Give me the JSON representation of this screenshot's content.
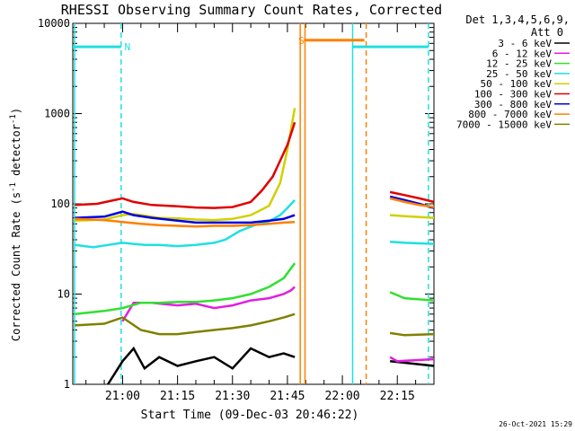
{
  "chart_data": {
    "type": "line",
    "title": "RHESSI Observing Summary Count Rates, Corrected",
    "xlabel": "Start Time (09-Dec-03 20:46:22)",
    "ylabel": "Corrected Count Rate (s",
    "ylabel_sup": "-1",
    "ylabel_mid": " detector",
    "ylabel_end": ")",
    "ylog": true,
    "ylim": [
      1,
      10000
    ],
    "xlim_min": [
      46.4,
      145
    ],
    "y_ticks": [
      {
        "v": 1,
        "label": "1"
      },
      {
        "v": 10,
        "label": "10"
      },
      {
        "v": 100,
        "label": "100"
      },
      {
        "v": 1000,
        "label": "1000"
      },
      {
        "v": 10000,
        "label": "10000"
      }
    ],
    "x_ticks": [
      {
        "v": 60,
        "label": "21:00"
      },
      {
        "v": 75,
        "label": "21:15"
      },
      {
        "v": 90,
        "label": "21:30"
      },
      {
        "v": 105,
        "label": "21:45"
      },
      {
        "v": 120,
        "label": "22:00"
      },
      {
        "v": 135,
        "label": "22:15"
      }
    ],
    "legend_header": [
      "Det 1,3,4,5,6,9,",
      "Att 0"
    ],
    "footer_date": "26-Oct-2021 15:29",
    "colors": {
      "3-6": "#000000",
      "6-12": "#e020e0",
      "12-25": "#30e030",
      "25-50": "#20e0e0",
      "50-100": "#d0d000",
      "100-300": "#e00000",
      "300-800": "#0000e0",
      "800-7000": "#ff8000",
      "7000-15000": "#808000",
      "flag_cyan": "#20e0e0",
      "flag_orange": "#ff8000"
    },
    "series": [
      {
        "name": "3 - 6 keV",
        "key": "3-6",
        "seg1": [
          [
            56,
            1
          ],
          [
            60,
            1.8
          ],
          [
            63,
            2.5
          ],
          [
            66,
            1.5
          ],
          [
            70,
            2
          ],
          [
            75,
            1.6
          ],
          [
            80,
            1.8
          ],
          [
            85,
            2
          ],
          [
            90,
            1.5
          ],
          [
            95,
            2.5
          ],
          [
            100,
            2
          ],
          [
            104,
            2.2
          ],
          [
            107,
            2
          ]
        ],
        "seg2": [
          [
            133,
            1.8
          ],
          [
            145,
            1.6
          ]
        ]
      },
      {
        "name": "6 - 12 keV",
        "key": "6-12",
        "seg1": [
          [
            60,
            5
          ],
          [
            63,
            8
          ],
          [
            68,
            8
          ],
          [
            75,
            7.5
          ],
          [
            80,
            7.8
          ],
          [
            85,
            7
          ],
          [
            90,
            7.5
          ],
          [
            95,
            8.5
          ],
          [
            100,
            9
          ],
          [
            104,
            10
          ],
          [
            106,
            11
          ],
          [
            107,
            12
          ]
        ],
        "seg2": [
          [
            133,
            2
          ],
          [
            135,
            1.8
          ],
          [
            145,
            1.9
          ]
        ]
      },
      {
        "name": "12 - 25 keV",
        "key": "12-25",
        "seg1": [
          [
            47,
            6
          ],
          [
            55,
            6.5
          ],
          [
            60,
            7
          ],
          [
            65,
            8
          ],
          [
            70,
            8
          ],
          [
            75,
            8.2
          ],
          [
            80,
            8.2
          ],
          [
            85,
            8.5
          ],
          [
            90,
            9
          ],
          [
            95,
            10
          ],
          [
            100,
            12
          ],
          [
            104,
            15
          ],
          [
            107,
            22
          ]
        ],
        "seg2": [
          [
            133,
            10.5
          ],
          [
            137,
            9
          ],
          [
            145,
            8.5
          ]
        ]
      },
      {
        "name": "25 - 50 keV",
        "key": "25-50",
        "seg1": [
          [
            47,
            35
          ],
          [
            52,
            33
          ],
          [
            56,
            35
          ],
          [
            60,
            37
          ],
          [
            63,
            36
          ],
          [
            66,
            35
          ],
          [
            70,
            35
          ],
          [
            75,
            34
          ],
          [
            80,
            35
          ],
          [
            85,
            37
          ],
          [
            88,
            40
          ],
          [
            92,
            50
          ],
          [
            96,
            58
          ],
          [
            100,
            64
          ],
          [
            103,
            75
          ],
          [
            105,
            90
          ],
          [
            107,
            110
          ]
        ],
        "seg2": [
          [
            133,
            38
          ],
          [
            137,
            37
          ],
          [
            145,
            36
          ]
        ]
      },
      {
        "name": "50 - 100 keV",
        "key": "50-100",
        "seg1": [
          [
            47,
            65
          ],
          [
            55,
            67
          ],
          [
            60,
            75
          ],
          [
            63,
            77
          ],
          [
            66,
            74
          ],
          [
            70,
            70
          ],
          [
            75,
            69
          ],
          [
            80,
            67
          ],
          [
            85,
            66
          ],
          [
            90,
            68
          ],
          [
            95,
            75
          ],
          [
            100,
            95
          ],
          [
            103,
            170
          ],
          [
            105,
            400
          ],
          [
            107,
            1150
          ]
        ],
        "seg2": [
          [
            133,
            75
          ],
          [
            137,
            73
          ],
          [
            145,
            70
          ]
        ]
      },
      {
        "name": "100 - 300 keV",
        "key": "100-300",
        "seg1": [
          [
            47,
            97
          ],
          [
            53,
            100
          ],
          [
            60,
            115
          ],
          [
            63,
            105
          ],
          [
            68,
            97
          ],
          [
            75,
            94
          ],
          [
            80,
            91
          ],
          [
            85,
            90
          ],
          [
            90,
            92
          ],
          [
            95,
            105
          ],
          [
            98,
            140
          ],
          [
            101,
            200
          ],
          [
            103,
            300
          ],
          [
            105,
            450
          ],
          [
            107,
            800
          ]
        ],
        "seg2": [
          [
            133,
            135
          ],
          [
            137,
            125
          ],
          [
            141,
            115
          ],
          [
            145,
            105
          ]
        ]
      },
      {
        "name": "300 - 800 keV",
        "key": "300-800",
        "seg1": [
          [
            47,
            70
          ],
          [
            55,
            72
          ],
          [
            60,
            82
          ],
          [
            63,
            75
          ],
          [
            68,
            70
          ],
          [
            75,
            65
          ],
          [
            80,
            62
          ],
          [
            85,
            62
          ],
          [
            90,
            62
          ],
          [
            95,
            62
          ],
          [
            100,
            65
          ],
          [
            104,
            68
          ],
          [
            107,
            75
          ]
        ],
        "seg2": [
          [
            133,
            120
          ],
          [
            137,
            110
          ],
          [
            141,
            100
          ],
          [
            145,
            90
          ]
        ]
      },
      {
        "name": "800 - 7000 keV",
        "key": "800-7000",
        "seg1": [
          [
            47,
            68
          ],
          [
            55,
            66
          ],
          [
            60,
            63
          ],
          [
            65,
            60
          ],
          [
            70,
            58
          ],
          [
            75,
            57
          ],
          [
            80,
            56
          ],
          [
            85,
            57
          ],
          [
            90,
            57
          ],
          [
            95,
            58
          ],
          [
            100,
            60
          ],
          [
            104,
            62
          ],
          [
            107,
            63
          ]
        ],
        "seg2": [
          [
            133,
            115
          ],
          [
            137,
            105
          ],
          [
            141,
            97
          ],
          [
            145,
            92
          ]
        ]
      },
      {
        "name": "7000 - 15000 keV",
        "key": "7000-15000",
        "seg1": [
          [
            47,
            4.5
          ],
          [
            55,
            4.7
          ],
          [
            60,
            5.5
          ],
          [
            65,
            4
          ],
          [
            70,
            3.6
          ],
          [
            75,
            3.6
          ],
          [
            80,
            3.8
          ],
          [
            85,
            4
          ],
          [
            90,
            4.2
          ],
          [
            95,
            4.5
          ],
          [
            100,
            5
          ],
          [
            104,
            5.5
          ],
          [
            107,
            6
          ]
        ],
        "seg2": [
          [
            133,
            3.7
          ],
          [
            137,
            3.5
          ],
          [
            145,
            3.6
          ]
        ]
      }
    ],
    "flags": [
      {
        "label": "N",
        "color_key": "flag_cyan",
        "y": 5500,
        "start": 46.4,
        "end": 59.6,
        "label_x": 60.5
      },
      {
        "label": "S",
        "color_key": "flag_orange",
        "y": 6500,
        "start": 109.5,
        "end": 126,
        "label_x": 108
      }
    ],
    "vlines": [
      {
        "x": 46.9,
        "key": "flag_cyan",
        "dash": false
      },
      {
        "x": 59.6,
        "key": "flag_cyan",
        "dash": true
      },
      {
        "x": 108.5,
        "key": "flag_orange",
        "dash": false
      },
      {
        "x": 109.8,
        "key": "flag_orange",
        "dash": false
      },
      {
        "x": 122.8,
        "key": "flag_cyan",
        "dash": false
      },
      {
        "x": 126.5,
        "key": "flag_orange",
        "dash": true
      },
      {
        "x": 143.5,
        "key": "flag_cyan",
        "dash": true
      }
    ],
    "flag_tail": {
      "start": 122.8,
      "end": 143.5,
      "y": 5500
    }
  }
}
